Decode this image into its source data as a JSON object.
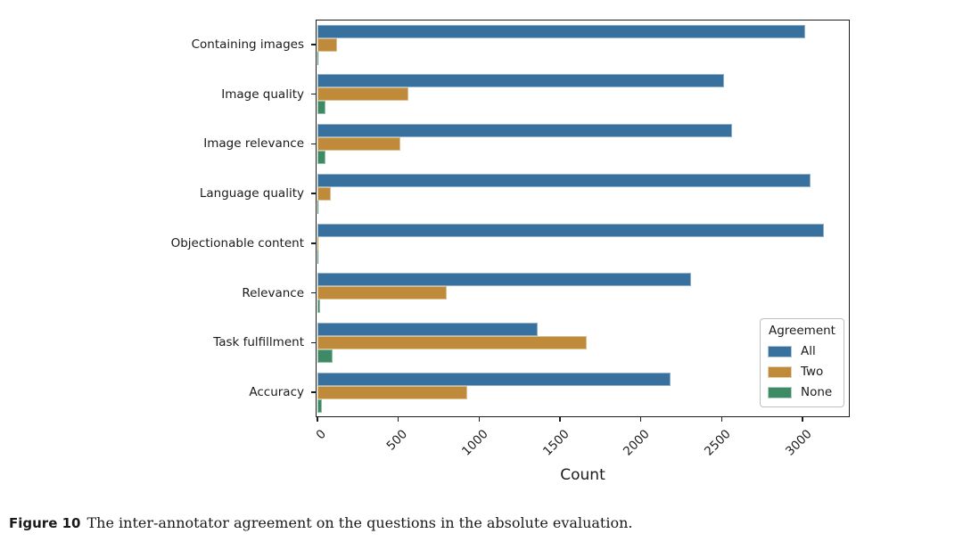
{
  "figure": {
    "caption_label": "Figure 10",
    "caption_text": "The inter-annotator agreement on the questions in the absolute evaluation."
  },
  "chart_data": {
    "type": "bar",
    "orientation": "horizontal",
    "title": "",
    "xlabel": "Count",
    "ylabel": "",
    "categories": [
      "Containing images",
      "Image quality",
      "Image relevance",
      "Language quality",
      "Objectionable content",
      "Relevance",
      "Task fulfillment",
      "Accuracy"
    ],
    "series": [
      {
        "name": "All",
        "color": "#38709e",
        "values": [
          3020,
          2515,
          2565,
          3055,
          3135,
          2315,
          1365,
          2185
        ]
      },
      {
        "name": "Two",
        "color": "#bf8b3a",
        "values": [
          125,
          565,
          515,
          85,
          10,
          805,
          1670,
          930
        ]
      },
      {
        "name": "None",
        "color": "#3e8a65",
        "values": [
          10,
          50,
          50,
          5,
          2,
          20,
          95,
          30
        ]
      }
    ],
    "xlim": [
      0,
      3290
    ],
    "xticks": [
      0,
      500,
      1000,
      1500,
      2000,
      2500,
      3000
    ],
    "legend": {
      "title": "Agreement",
      "position": "lower right"
    },
    "grid": false,
    "frame_color": "#1c1c1c"
  }
}
